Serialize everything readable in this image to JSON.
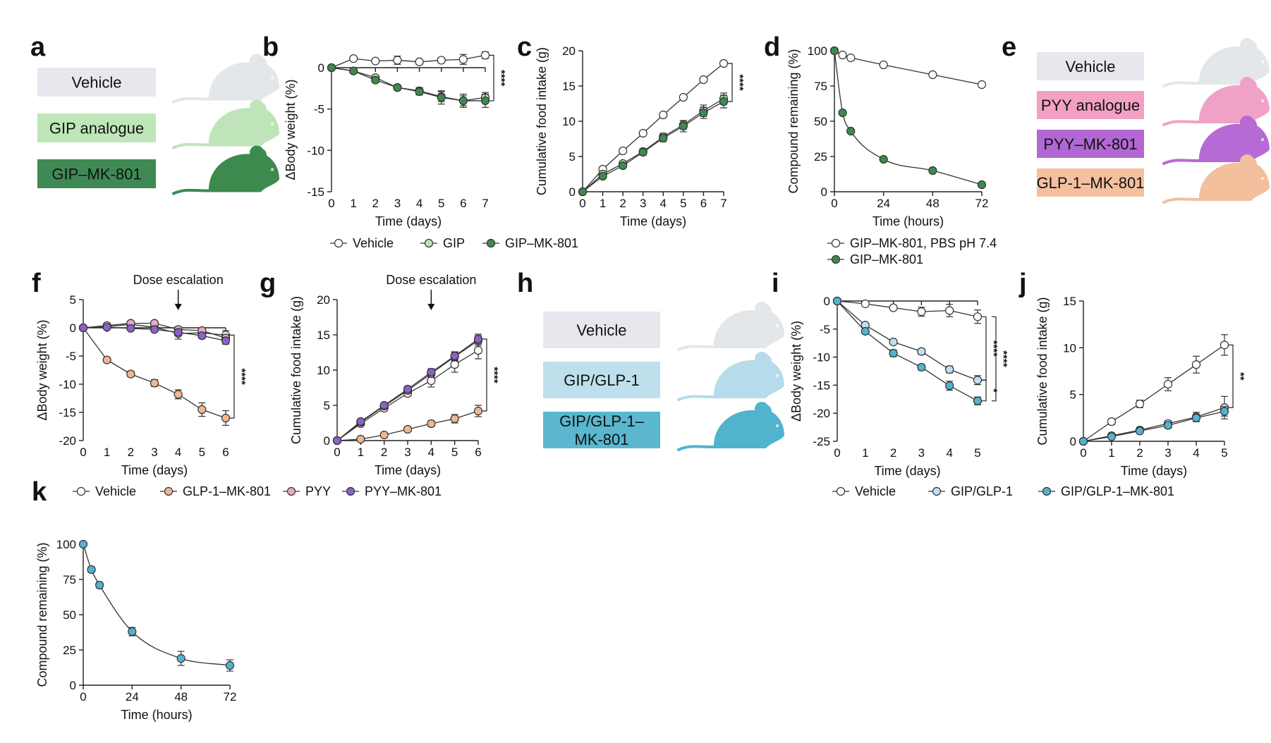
{
  "colors": {
    "vehicle": "#ffffff",
    "gip": "#b9e3b1",
    "gip_mk801": "#3d8a4f",
    "glp1_mk801": "#efb692",
    "pyy": "#eba7c3",
    "pyy_mk801": "#8a62c7",
    "gipglp1": "#bfe0ef",
    "gipglp1_mk801": "#52b3cf",
    "box_vehicle": "#e6e8ee",
    "box_gip": "#bfe6b8",
    "box_gipmk": "#3f8a54",
    "box_pyy": "#f2a0c4",
    "box_pyymk": "#b268d2",
    "box_glpmk": "#f5c09e",
    "box_gipglp": "#bde0ec",
    "box_gipglpmk": "#5ab7cf",
    "mouse_vehicle": "#e3e7ea",
    "mouse_gip": "#bfe4b9",
    "mouse_gipmk": "#3d8a4f",
    "mouse_pyy": "#f0a2c6",
    "mouse_pyymk": "#b56ad6",
    "mouse_glpmk": "#f3bf9c",
    "mouse_gipglp": "#b6dbea",
    "mouse_gipglpmk": "#52b3cf"
  },
  "panels": {
    "a": {
      "letter": "a",
      "boxes": [
        {
          "label": "Vehicle",
          "color_key": "box_vehicle",
          "text_color": "#111111",
          "mouse_key": "mouse_vehicle"
        },
        {
          "label": "GIP analogue",
          "color_key": "box_gip",
          "text_color": "#111111",
          "mouse_key": "mouse_gip"
        },
        {
          "label": "GIP–MK-801",
          "color_key": "box_gipmk",
          "text_color": "#111111",
          "mouse_key": "mouse_gipmk"
        }
      ]
    },
    "e": {
      "letter": "e",
      "boxes": [
        {
          "label": "Vehicle",
          "color_key": "box_vehicle",
          "text_color": "#111111",
          "mouse_key": "mouse_vehicle"
        },
        {
          "label": "PYY analogue",
          "color_key": "box_pyy",
          "text_color": "#111111",
          "mouse_key": "mouse_pyy"
        },
        {
          "label": "PYY–MK-801",
          "color_key": "box_pyymk",
          "text_color": "#111111",
          "mouse_key": "mouse_pyymk"
        },
        {
          "label": "GLP-1–MK-801",
          "color_key": "box_glpmk",
          "text_color": "#111111",
          "mouse_key": "mouse_glpmk"
        }
      ]
    },
    "h": {
      "letter": "h",
      "boxes": [
        {
          "label": "Vehicle",
          "color_key": "box_vehicle",
          "text_color": "#111111",
          "mouse_key": "mouse_vehicle"
        },
        {
          "label": "GIP/GLP-1",
          "color_key": "box_gipglp",
          "text_color": "#111111",
          "mouse_key": "mouse_gipglp"
        },
        {
          "label": "GIP/GLP-1–\nMK-801",
          "color_key": "box_gipglpmk",
          "text_color": "#111111",
          "mouse_key": "mouse_gipglpmk"
        }
      ]
    }
  },
  "legends": {
    "bc": [
      {
        "label": "Vehicle",
        "color_key": "vehicle"
      },
      {
        "label": "GIP",
        "color_key": "gip"
      },
      {
        "label": "GIP–MK-801",
        "color_key": "gip_mk801"
      }
    ],
    "d": [
      {
        "label": "GIP–MK-801, PBS pH 7.4",
        "color_key": "vehicle"
      },
      {
        "label": "GIP–MK-801",
        "color_key": "gip_mk801"
      }
    ],
    "fg": [
      {
        "label": "Vehicle",
        "color_key": "vehicle"
      },
      {
        "label": "GLP-1–MK-801",
        "color_key": "glp1_mk801"
      },
      {
        "label": "PYY",
        "color_key": "pyy"
      },
      {
        "label": "PYY–MK-801",
        "color_key": "pyy_mk801"
      }
    ],
    "ij": [
      {
        "label": "Vehicle",
        "color_key": "vehicle"
      },
      {
        "label": "GIP/GLP-1",
        "color_key": "gipglp1"
      },
      {
        "label": "GIP/GLP-1–MK-801",
        "color_key": "gipglp1_mk801"
      }
    ]
  },
  "chart_data": [
    {
      "id": "b",
      "letter": "b",
      "type": "line",
      "xlabel": "Time (days)",
      "ylabel": "ΔBody weight (%)",
      "xlim": [
        0,
        7
      ],
      "ylim": [
        -15,
        0
      ],
      "xticks": [
        0,
        1,
        2,
        3,
        4,
        5,
        6,
        7
      ],
      "yticks": [
        0,
        -5,
        -10,
        -15
      ],
      "x": [
        0,
        1,
        2,
        3,
        4,
        5,
        6,
        7
      ],
      "series": [
        {
          "name": "Vehicle",
          "color_key": "vehicle",
          "values": [
            0,
            1.1,
            0.8,
            0.9,
            0.7,
            0.9,
            1.0,
            1.5
          ],
          "err": [
            0,
            0.2,
            0.2,
            0.5,
            0.3,
            0.3,
            0.6,
            0.4
          ]
        },
        {
          "name": "GIP",
          "color_key": "gip",
          "values": [
            0,
            -0.4,
            -1.2,
            -2.4,
            -2.8,
            -3.5,
            -4.0,
            -3.6
          ],
          "err": [
            0,
            0.2,
            0.3,
            0.3,
            0.4,
            0.6,
            0.6,
            0.6
          ]
        },
        {
          "name": "GIP–MK-801",
          "color_key": "gip_mk801",
          "values": [
            0,
            -0.4,
            -1.5,
            -2.4,
            -2.9,
            -3.6,
            -4.0,
            -4.0
          ],
          "err": [
            0,
            0.2,
            0.3,
            0.3,
            0.4,
            0.8,
            0.8,
            0.8
          ]
        }
      ],
      "significance": [
        {
          "text": "****",
          "from": 1.5,
          "to": -4.0
        }
      ]
    },
    {
      "id": "c",
      "letter": "c",
      "type": "line",
      "xlabel": "Time (days)",
      "ylabel": "Cumulative food intake (g)",
      "xlim": [
        0,
        7
      ],
      "ylim": [
        0,
        20
      ],
      "xticks": [
        0,
        1,
        2,
        3,
        4,
        5,
        6,
        7
      ],
      "yticks": [
        0,
        5,
        10,
        15,
        20
      ],
      "x": [
        0,
        1,
        2,
        3,
        4,
        5,
        6,
        7
      ],
      "series": [
        {
          "name": "Vehicle",
          "color_key": "vehicle",
          "values": [
            0,
            3.2,
            5.8,
            8.3,
            10.9,
            13.4,
            15.9,
            18.2
          ],
          "err": [
            0,
            0.2,
            0.2,
            0.2,
            0.2,
            0.2,
            0.2,
            0.2
          ]
        },
        {
          "name": "GIP",
          "color_key": "gip",
          "values": [
            0,
            2.5,
            4.0,
            5.7,
            7.8,
            9.5,
            11.5,
            13.2
          ],
          "err": [
            0,
            0.3,
            0.3,
            0.4,
            0.5,
            0.6,
            0.8,
            0.8
          ]
        },
        {
          "name": "GIP–MK-801",
          "color_key": "gip_mk801",
          "values": [
            0,
            2.2,
            3.7,
            5.6,
            7.6,
            9.3,
            11.2,
            12.8
          ],
          "err": [
            0,
            0.3,
            0.3,
            0.4,
            0.5,
            0.8,
            0.8,
            0.9
          ]
        }
      ],
      "significance": [
        {
          "text": "****",
          "from": 18.2,
          "to": 12.8
        }
      ]
    },
    {
      "id": "d",
      "letter": "d",
      "type": "line",
      "xlabel": "Time (hours)",
      "ylabel": "Compound remaining (%)",
      "xlim": [
        0,
        72
      ],
      "ylim": [
        0,
        100
      ],
      "xticks": [
        0,
        24,
        48,
        72
      ],
      "yticks": [
        0,
        25,
        50,
        75,
        100
      ],
      "series": [
        {
          "name": "GIP–MK-801, PBS pH 7.4",
          "color_key": "vehicle",
          "x": [
            0,
            4,
            8,
            24,
            48,
            72
          ],
          "values": [
            100,
            97,
            95,
            90,
            83,
            76
          ],
          "smooth": false
        },
        {
          "name": "GIP–MK-801",
          "color_key": "gip_mk801",
          "x": [
            0,
            4,
            8,
            24,
            48,
            72
          ],
          "values": [
            100,
            56,
            43,
            23,
            15,
            5
          ],
          "smooth": true
        }
      ]
    },
    {
      "id": "f",
      "letter": "f",
      "type": "line",
      "xlabel": "Time (days)",
      "ylabel": "ΔBody weight (%)",
      "xlim": [
        0,
        6
      ],
      "ylim": [
        -20,
        5
      ],
      "xticks": [
        0,
        1,
        2,
        3,
        4,
        5,
        6
      ],
      "yticks": [
        5,
        0,
        -5,
        -10,
        -15,
        -20
      ],
      "x": [
        0,
        1,
        2,
        3,
        4,
        5,
        6
      ],
      "annotation": {
        "text": "Dose escalation",
        "x": 4
      },
      "series": [
        {
          "name": "Vehicle",
          "color_key": "vehicle",
          "values": [
            0,
            0.2,
            0.6,
            0.1,
            -1.0,
            -0.9,
            -1.3
          ],
          "err": [
            0,
            0.4,
            0.4,
            0.4,
            1.0,
            0.6,
            0.8
          ]
        },
        {
          "name": "GLP-1–MK-801",
          "color_key": "glp1_mk801",
          "values": [
            0,
            -5.7,
            -8.2,
            -9.8,
            -11.8,
            -14.5,
            -16.0
          ],
          "err": [
            0,
            0.4,
            0.5,
            0.6,
            0.8,
            1.2,
            1.3
          ]
        },
        {
          "name": "PYY",
          "color_key": "pyy",
          "values": [
            0,
            0.4,
            0.8,
            0.8,
            -0.3,
            -0.5,
            -1.8
          ],
          "err": [
            0,
            0.3,
            0.3,
            0.4,
            0.5,
            0.5,
            0.6
          ]
        },
        {
          "name": "PYY–MK-801",
          "color_key": "pyy_mk801",
          "values": [
            0,
            0.1,
            -0.1,
            -0.3,
            -0.8,
            -1.4,
            -2.3
          ],
          "err": [
            0,
            0.3,
            0.3,
            0.4,
            0.5,
            0.5,
            0.6
          ]
        }
      ],
      "significance": [
        {
          "text": "****",
          "from": -1.3,
          "to": -16.0
        }
      ]
    },
    {
      "id": "g",
      "letter": "g",
      "type": "line",
      "xlabel": "Time (days)",
      "ylabel": "Cumulative food intake (g)",
      "xlim": [
        0,
        6
      ],
      "ylim": [
        0,
        20
      ],
      "xticks": [
        0,
        1,
        2,
        3,
        4,
        5,
        6
      ],
      "yticks": [
        0,
        5,
        10,
        15,
        20
      ],
      "x": [
        0,
        1,
        2,
        3,
        4,
        5,
        6
      ],
      "annotation": {
        "text": "Dose escalation",
        "x": 4
      },
      "series": [
        {
          "name": "Vehicle",
          "color_key": "vehicle",
          "values": [
            0,
            2.4,
            4.6,
            6.7,
            8.5,
            10.8,
            12.8
          ],
          "err": [
            0,
            0.3,
            0.4,
            0.4,
            0.9,
            1.1,
            1.2
          ]
        },
        {
          "name": "GLP-1–MK-801",
          "color_key": "glp1_mk801",
          "values": [
            0,
            0.2,
            0.8,
            1.6,
            2.4,
            3.1,
            4.2
          ],
          "err": [
            0,
            0.1,
            0.2,
            0.3,
            0.4,
            0.6,
            0.8
          ]
        },
        {
          "name": "PYY",
          "color_key": "pyy",
          "values": [
            0,
            2.6,
            4.9,
            7.1,
            9.5,
            11.9,
            14.2
          ],
          "err": [
            0,
            0.3,
            0.3,
            0.4,
            0.5,
            0.6,
            0.7
          ]
        },
        {
          "name": "PYY–MK-801",
          "color_key": "pyy_mk801",
          "values": [
            0,
            2.7,
            5.0,
            7.3,
            9.7,
            12.0,
            14.4
          ],
          "err": [
            0,
            0.3,
            0.3,
            0.4,
            0.5,
            0.6,
            0.7
          ]
        }
      ],
      "significance": [
        {
          "text": "****",
          "from": 14.4,
          "to": 4.2
        }
      ]
    },
    {
      "id": "i",
      "letter": "i",
      "type": "line",
      "xlabel": "Time (days)",
      "ylabel": "ΔBody weight (%)",
      "xlim": [
        0,
        5
      ],
      "ylim": [
        -25,
        0
      ],
      "xticks": [
        0,
        1,
        2,
        3,
        4,
        5
      ],
      "yticks": [
        0,
        -5,
        -10,
        -15,
        -20,
        -25
      ],
      "x": [
        0,
        1,
        2,
        3,
        4,
        5
      ],
      "series": [
        {
          "name": "Vehicle",
          "color_key": "vehicle",
          "values": [
            0,
            -0.5,
            -1.2,
            -1.9,
            -1.7,
            -2.8
          ],
          "err": [
            0,
            0.3,
            0.4,
            0.8,
            1.1,
            1.2
          ]
        },
        {
          "name": "GIP/GLP-1",
          "color_key": "gipglp1",
          "values": [
            0,
            -4.3,
            -7.3,
            -9.0,
            -12.2,
            -14.1
          ],
          "err": [
            0,
            0.4,
            0.4,
            0.5,
            0.6,
            0.8
          ]
        },
        {
          "name": "GIP/GLP-1–MK-801",
          "color_key": "gipglp1_mk801",
          "values": [
            0,
            -5.4,
            -9.3,
            -11.8,
            -15.1,
            -17.8
          ],
          "err": [
            0,
            0.4,
            0.6,
            0.5,
            0.8,
            0.7
          ]
        }
      ],
      "significance": [
        {
          "text": "****",
          "from": -2.8,
          "to": -14.1
        },
        {
          "text": "****",
          "from": -2.8,
          "to": -17.8
        },
        {
          "text": "*",
          "from": -14.1,
          "to": -17.8
        }
      ]
    },
    {
      "id": "j",
      "letter": "j",
      "type": "line",
      "xlabel": "Time (days)",
      "ylabel": "Cumulative food intake (g)",
      "xlim": [
        0,
        5
      ],
      "ylim": [
        0,
        15
      ],
      "xticks": [
        0,
        1,
        2,
        3,
        4,
        5
      ],
      "yticks": [
        0,
        5,
        10,
        15
      ],
      "x": [
        0,
        1,
        2,
        3,
        4,
        5
      ],
      "series": [
        {
          "name": "Vehicle",
          "color_key": "vehicle",
          "values": [
            0,
            2.1,
            4.0,
            6.1,
            8.2,
            10.3
          ],
          "err": [
            0,
            0.3,
            0.4,
            0.7,
            0.9,
            1.1
          ]
        },
        {
          "name": "GIP/GLP-1",
          "color_key": "gipglp1",
          "values": [
            0,
            0.6,
            1.2,
            1.9,
            2.6,
            3.6
          ],
          "err": [
            0,
            0.2,
            0.3,
            0.3,
            0.5,
            1.2
          ]
        },
        {
          "name": "GIP/GLP-1–MK-801",
          "color_key": "gipglp1_mk801",
          "values": [
            0,
            0.5,
            1.1,
            1.7,
            2.5,
            3.2
          ],
          "err": [
            0,
            0.2,
            0.2,
            0.3,
            0.4,
            0.5
          ]
        }
      ],
      "significance": [
        {
          "text": "**",
          "from": 10.3,
          "to": 3.6
        }
      ]
    },
    {
      "id": "k",
      "letter": "k",
      "type": "line",
      "xlabel": "Time (hours)",
      "ylabel": "Compound remaining (%)",
      "xlim": [
        0,
        72
      ],
      "ylim": [
        0,
        100
      ],
      "xticks": [
        0,
        24,
        48,
        72
      ],
      "yticks": [
        0,
        25,
        50,
        75,
        100
      ],
      "series": [
        {
          "name": "GIP/GLP-1–MK-801",
          "color_key": "gipglp1_mk801",
          "x": [
            0,
            4,
            8,
            24,
            48,
            72
          ],
          "values": [
            100,
            82,
            71,
            38,
            19,
            14
          ],
          "err": [
            0,
            2,
            2,
            3,
            5,
            4
          ],
          "smooth": true
        }
      ]
    }
  ]
}
